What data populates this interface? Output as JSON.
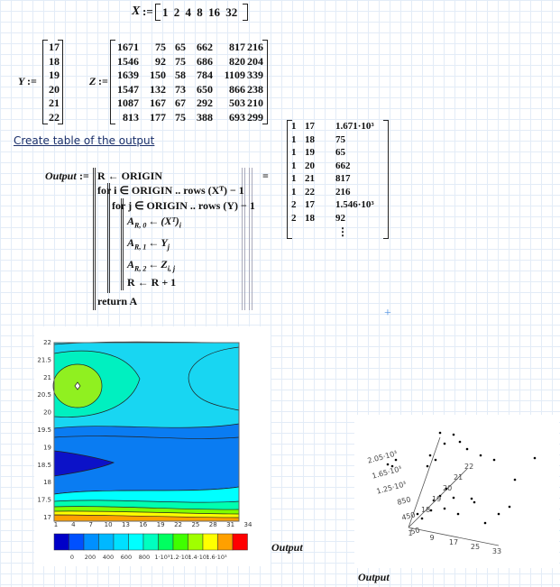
{
  "x_definition": {
    "name": "X",
    "operator": ":=",
    "values": [
      1,
      2,
      4,
      8,
      16,
      32
    ]
  },
  "y_definition": {
    "name": "Y",
    "operator": ":=",
    "values": [
      17,
      18,
      19,
      20,
      21,
      22
    ]
  },
  "z_definition": {
    "name": "Z",
    "operator": ":=",
    "rows": [
      [
        1671,
        75,
        65,
        662,
        817,
        216
      ],
      [
        1546,
        92,
        75,
        686,
        820,
        204
      ],
      [
        1639,
        150,
        58,
        784,
        1109,
        339
      ],
      [
        1547,
        132,
        73,
        650,
        866,
        238
      ],
      [
        1087,
        167,
        67,
        292,
        503,
        210
      ],
      [
        813,
        177,
        75,
        388,
        693,
        299
      ]
    ]
  },
  "heading": "Create table of the output",
  "program": {
    "name": "Output",
    "operator": ":=",
    "lines": [
      "R ← ORIGIN",
      "for i ∈ ORIGIN .. rows (Xᵀ) − 1",
      "for j ∈ ORIGIN .. rows (Y) − 1",
      {
        "target": "A",
        "target_sub": "R, 0",
        "arrow": "←",
        "expr": "(Xᵀ)",
        "expr_sub": "i"
      },
      {
        "target": "A",
        "target_sub": "R, 1",
        "arrow": "←",
        "expr": "Y",
        "expr_sub": "j"
      },
      {
        "target": "A",
        "target_sub": "R, 2",
        "arrow": "←",
        "expr": "Z",
        "expr_sub": "i, j"
      },
      "R ← R + 1",
      "return A"
    ]
  },
  "result": {
    "operator": "=",
    "rows": [
      [
        1,
        17,
        "1.671·10³"
      ],
      [
        1,
        18,
        75
      ],
      [
        1,
        19,
        65
      ],
      [
        1,
        20,
        662
      ],
      [
        1,
        21,
        817
      ],
      [
        1,
        22,
        216
      ],
      [
        2,
        17,
        "1.546·10³"
      ],
      [
        2,
        18,
        92
      ]
    ],
    "more": "⋮"
  },
  "contour_plot": {
    "yticks": [
      17,
      17.5,
      18,
      18.5,
      19,
      19.5,
      20,
      20.5,
      21,
      21.5,
      22
    ],
    "xticks": [
      1,
      4,
      7,
      10,
      13,
      16,
      19,
      22,
      25,
      28,
      31,
      34
    ],
    "colorbar_labels": [
      "0",
      "200",
      "400",
      "600",
      "800",
      "1·10³",
      "1.2·10³",
      "1.4·10³",
      "1.6·10³"
    ],
    "label": "Output"
  },
  "scatter_3d": {
    "z_labels": [
      "2.05·10³",
      "1.65·10³",
      "1.25·10³",
      "850",
      "450",
      "50"
    ],
    "x_labels": [
      "1",
      "9",
      "17",
      "25",
      "33"
    ],
    "y_labels": [
      "18",
      "19",
      "20",
      "21",
      "22"
    ],
    "label": "Output"
  }
}
